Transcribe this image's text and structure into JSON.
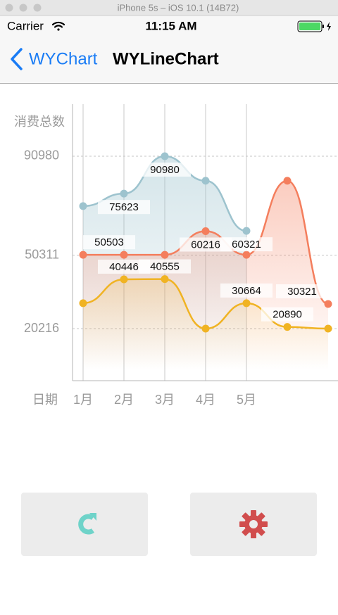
{
  "window_title": "iPhone 5s – iOS 10.1 (14B72)",
  "status_bar": {
    "carrier": "Carrier",
    "time": "11:15 AM"
  },
  "nav_bar": {
    "back": "WYChart",
    "title": "WYLineChart"
  },
  "chart_data": {
    "type": "line",
    "y_label": "消费总数",
    "x_label": "日期",
    "categories": [
      "1月",
      "2月",
      "3月",
      "4月",
      "5月",
      null,
      null
    ],
    "series": [
      {
        "color": "#9dc3ce",
        "values": [
          70500,
          75623,
          90980,
          80900,
          60321,
          null,
          null
        ],
        "value_labels": [
          null,
          "75623",
          "90980",
          null,
          "60321",
          null,
          null
        ]
      },
      {
        "color": "#f47e5d",
        "values": [
          50503,
          50503,
          50503,
          60216,
          50503,
          80900,
          30321
        ],
        "value_labels": [
          "50503",
          null,
          null,
          "60216",
          null,
          null,
          "30321"
        ]
      },
      {
        "color": "#f0b323",
        "values": [
          30664,
          40446,
          40555,
          20216,
          30664,
          20890,
          20216
        ],
        "value_labels": [
          null,
          "40446",
          "40555",
          null,
          "30664",
          "20890",
          null
        ]
      }
    ],
    "ylim": [
      -1157,
      112353
    ],
    "yticks": [
      20216,
      50311,
      90980
    ],
    "grid": true
  }
}
